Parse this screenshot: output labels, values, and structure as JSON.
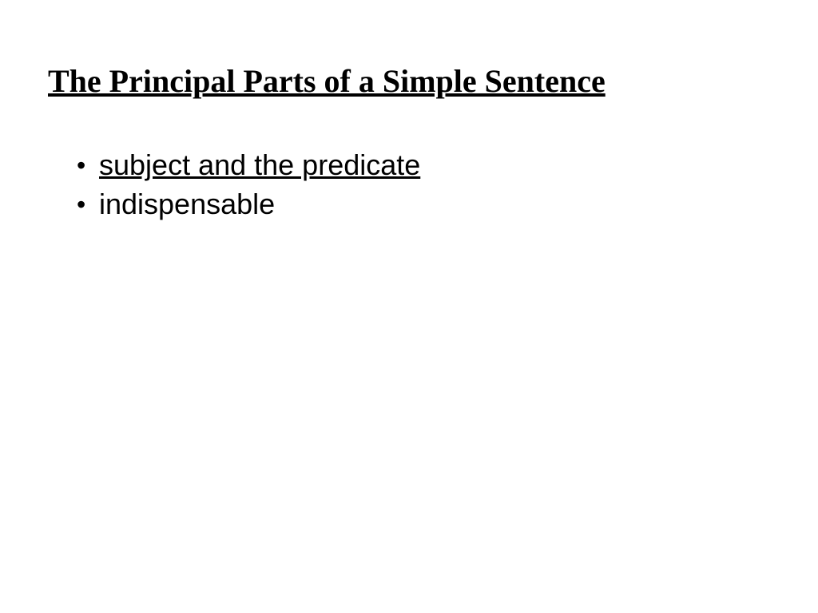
{
  "slide": {
    "title": "The Principal Parts of a Simple Sentence",
    "title_fontsize": 40,
    "title_font_weight": "bold",
    "title_underlined": true,
    "title_font_family": "Times New Roman",
    "title_color": "#000000",
    "bullets": [
      {
        "text": "subject and the predicate",
        "underlined": true
      },
      {
        "text": "indispensable",
        "underlined": false
      }
    ],
    "bullet_fontsize": 36,
    "bullet_font_family": "Arial",
    "bullet_color": "#000000",
    "background_color": "#ffffff"
  }
}
